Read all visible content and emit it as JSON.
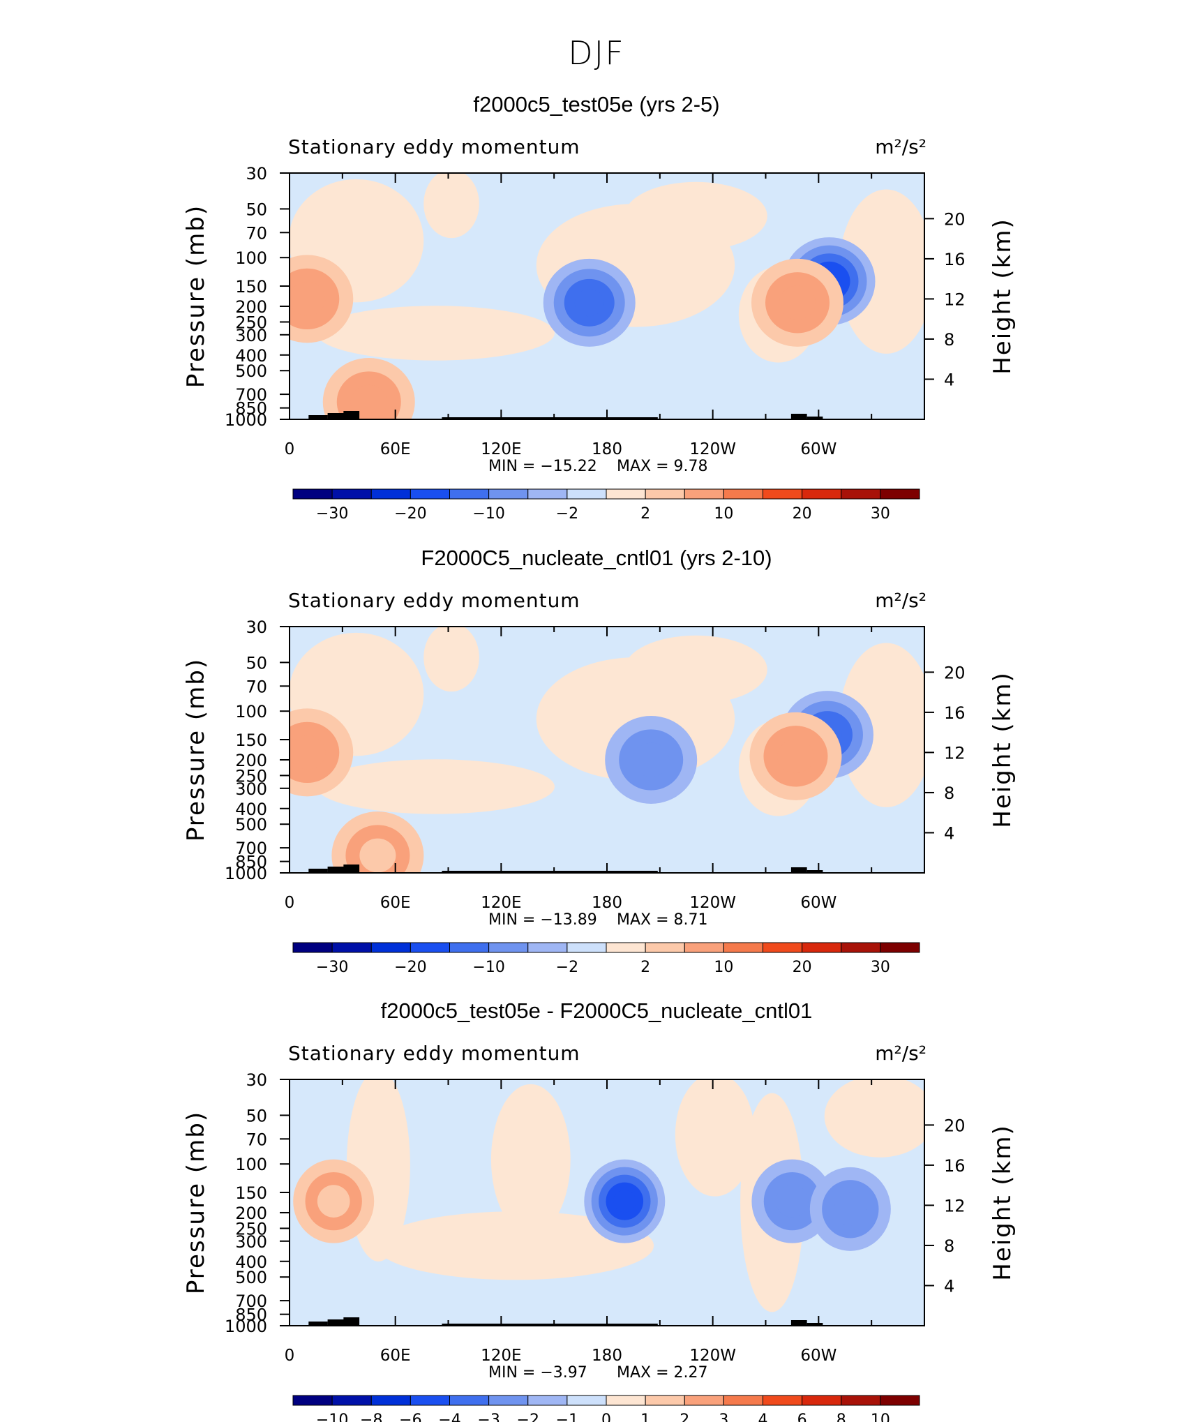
{
  "figure": {
    "title": "DJF"
  },
  "chart_data": [
    {
      "type": "heatmap",
      "title": "f2000c5_test05e (yrs 2-5)",
      "left_label": "Stationary eddy momentum",
      "right_label": "m²/s²",
      "ylabel": "Pressure (mb)",
      "ylabel_right": "Height (km)",
      "x_ticks": [
        "0",
        "60E",
        "120E",
        "180",
        "120W",
        "60W"
      ],
      "y_ticks": [
        "30",
        "50",
        "70",
        "100",
        "150",
        "200",
        "250",
        "300",
        "400",
        "500",
        "700",
        "850",
        "1000"
      ],
      "y_right_ticks": [
        "20",
        "16",
        "12",
        "8",
        "4"
      ],
      "min_text": "MIN = −15.22",
      "max_text": "MAX = 9.78",
      "min": -15.22,
      "max": 9.78,
      "colorbar_labels": [
        "−30",
        "−20",
        "−10",
        "−2",
        "2",
        "10",
        "20",
        "30"
      ],
      "features": [
        {
          "lon": 10,
          "p": 180,
          "value": 7
        },
        {
          "lon": 170,
          "p": 190,
          "value": -12
        },
        {
          "lon": 306,
          "p": 140,
          "value": -15
        },
        {
          "lon": 288,
          "p": 190,
          "value": 9
        },
        {
          "lon": 45,
          "p": 780,
          "value": 6
        }
      ]
    },
    {
      "type": "heatmap",
      "title": "F2000C5_nucleate_cntl01 (yrs 2-10)",
      "left_label": "Stationary eddy momentum",
      "right_label": "m²/s²",
      "ylabel": "Pressure (mb)",
      "ylabel_right": "Height (km)",
      "x_ticks": [
        "0",
        "60E",
        "120E",
        "180",
        "120W",
        "60W"
      ],
      "y_ticks": [
        "30",
        "50",
        "70",
        "100",
        "150",
        "200",
        "250",
        "300",
        "400",
        "500",
        "700",
        "850",
        "1000"
      ],
      "y_right_ticks": [
        "20",
        "16",
        "12",
        "8",
        "4"
      ],
      "min_text": "MIN = −13.89",
      "max_text": "MAX = 8.71",
      "min": -13.89,
      "max": 8.71,
      "colorbar_labels": [
        "−30",
        "−20",
        "−10",
        "−2",
        "2",
        "10",
        "20",
        "30"
      ],
      "features": [
        {
          "lon": 10,
          "p": 180,
          "value": 6
        },
        {
          "lon": 205,
          "p": 200,
          "value": -8
        },
        {
          "lon": 305,
          "p": 140,
          "value": -14
        },
        {
          "lon": 287,
          "p": 190,
          "value": 8
        },
        {
          "lon": 50,
          "p": 780,
          "value": 5
        }
      ]
    },
    {
      "type": "heatmap",
      "title": "f2000c5_test05e - F2000C5_nucleate_cntl01",
      "left_label": "Stationary eddy momentum",
      "right_label": "m²/s²",
      "ylabel": "Pressure (mb)",
      "ylabel_right": "Height (km)",
      "x_ticks": [
        "0",
        "60E",
        "120E",
        "180",
        "120W",
        "60W"
      ],
      "y_ticks": [
        "30",
        "50",
        "70",
        "100",
        "150",
        "200",
        "250",
        "300",
        "400",
        "500",
        "700",
        "850",
        "1000"
      ],
      "y_right_ticks": [
        "20",
        "16",
        "12",
        "8",
        "4"
      ],
      "min_text": "MIN = −3.97",
      "max_text": "MAX = 2.27",
      "min": -3.97,
      "max": 2.27,
      "colorbar_labels": [
        "−10",
        "−8",
        "−6",
        "−4",
        "−3",
        "−2",
        "−1",
        "0",
        "1",
        "2",
        "3",
        "4",
        "6",
        "8",
        "10"
      ],
      "features": [
        {
          "lon": 190,
          "p": 170,
          "value": -4
        },
        {
          "lon": 25,
          "p": 170,
          "value": 2
        },
        {
          "lon": 285,
          "p": 170,
          "value": -2
        },
        {
          "lon": 318,
          "p": 190,
          "value": -2
        }
      ]
    }
  ],
  "colors": {
    "colorbar": [
      "#000080",
      "#0010a8",
      "#0030d8",
      "#1a4ff0",
      "#3f6fee",
      "#6f93ef",
      "#9fb6f4",
      "#cde0fb",
      "#fde5d2",
      "#fcc9aa",
      "#f9a17b",
      "#f57a4c",
      "#f04a1c",
      "#d8280c",
      "#a81208",
      "#7d0000"
    ],
    "frame": "#000000"
  }
}
